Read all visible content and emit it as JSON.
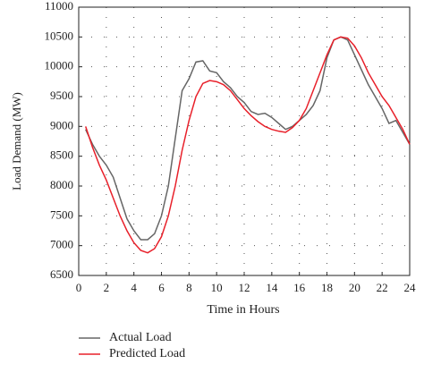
{
  "chart_data": {
    "type": "line",
    "xlabel": "Time in Hours",
    "ylabel": "Load Demand (MW)",
    "x": [
      0.5,
      1,
      1.5,
      2,
      2.5,
      3,
      3.5,
      4,
      4.5,
      5,
      5.5,
      6,
      6.5,
      7,
      7.5,
      8,
      8.5,
      9,
      9.5,
      10,
      10.5,
      11,
      11.5,
      12,
      12.5,
      13,
      13.5,
      14,
      14.5,
      15,
      15.5,
      16,
      16.5,
      17,
      17.5,
      18,
      18.5,
      19,
      19.5,
      20,
      20.5,
      21,
      21.5,
      22,
      22.5,
      23,
      23.5,
      24
    ],
    "series": [
      {
        "name": "Actual Load",
        "color": "#666666",
        "values": [
          8950,
          8700,
          8500,
          8350,
          8150,
          7800,
          7450,
          7250,
          7100,
          7100,
          7200,
          7500,
          8000,
          8800,
          9600,
          9800,
          10080,
          10100,
          9930,
          9900,
          9750,
          9650,
          9500,
          9400,
          9250,
          9200,
          9220,
          9150,
          9050,
          8950,
          9000,
          9100,
          9200,
          9350,
          9600,
          10150,
          10450,
          10500,
          10450,
          10200,
          9950,
          9700,
          9500,
          9300,
          9050,
          9100,
          8900,
          8700
        ]
      },
      {
        "name": "Predicted Load",
        "color": "#e8202a",
        "values": [
          9000,
          8650,
          8350,
          8100,
          7800,
          7500,
          7250,
          7050,
          6920,
          6880,
          6950,
          7150,
          7500,
          8000,
          8600,
          9100,
          9500,
          9720,
          9770,
          9750,
          9700,
          9600,
          9450,
          9300,
          9180,
          9080,
          9000,
          8950,
          8920,
          8900,
          8980,
          9100,
          9300,
          9600,
          9900,
          10200,
          10450,
          10500,
          10480,
          10350,
          10150,
          9900,
          9700,
          9500,
          9350,
          9150,
          8950,
          8700
        ]
      }
    ],
    "xlim": [
      0,
      24
    ],
    "xticks": [
      0,
      2,
      4,
      6,
      8,
      10,
      12,
      14,
      16,
      18,
      20,
      22,
      24
    ],
    "ylim": [
      6500,
      11000
    ],
    "yticks": [
      6500,
      7000,
      7500,
      8000,
      8500,
      9000,
      9500,
      10000,
      10500,
      11000
    ],
    "grid": true
  }
}
